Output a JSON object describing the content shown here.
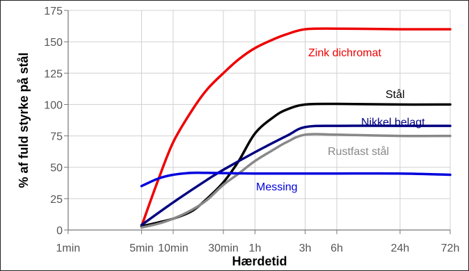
{
  "chart_data": {
    "type": "line",
    "title": "",
    "xlabel": "Hærdetid",
    "ylabel": "% af fuld styrke på stål",
    "x_scale": "log",
    "x_unit": "hours",
    "xlim": [
      0.0167,
      72
    ],
    "ylim": [
      0,
      175
    ],
    "x_ticks": [
      {
        "label": "1min",
        "value": 0.01667
      },
      {
        "label": "5min",
        "value": 0.08333
      },
      {
        "label": "10min",
        "value": 0.16667
      },
      {
        "label": "30min",
        "value": 0.5
      },
      {
        "label": "1h",
        "value": 1
      },
      {
        "label": "3h",
        "value": 3
      },
      {
        "label": "6h",
        "value": 6
      },
      {
        "label": "24h",
        "value": 24
      },
      {
        "label": "72h",
        "value": 72
      }
    ],
    "y_ticks": [
      0,
      25,
      50,
      75,
      100,
      125,
      150,
      175
    ],
    "grid": true,
    "series": [
      {
        "name": "Zink dichromat",
        "color": "#ee0000",
        "points": [
          [
            0.0833,
            3
          ],
          [
            0.12,
            40
          ],
          [
            0.1667,
            70
          ],
          [
            0.25,
            95
          ],
          [
            0.35,
            112
          ],
          [
            0.5,
            125
          ],
          [
            0.7,
            136
          ],
          [
            1,
            145
          ],
          [
            1.5,
            152
          ],
          [
            2,
            156
          ],
          [
            3,
            160
          ],
          [
            6,
            160.5
          ],
          [
            24,
            160
          ],
          [
            72,
            160
          ]
        ]
      },
      {
        "name": "Stål",
        "color": "#000000",
        "points": [
          [
            0.0833,
            3
          ],
          [
            0.12,
            6
          ],
          [
            0.1667,
            9
          ],
          [
            0.25,
            15
          ],
          [
            0.35,
            25
          ],
          [
            0.5,
            38
          ],
          [
            0.7,
            55
          ],
          [
            1,
            77
          ],
          [
            1.5,
            90
          ],
          [
            2,
            96
          ],
          [
            3,
            100
          ],
          [
            6,
            100.5
          ],
          [
            24,
            100
          ],
          [
            72,
            100
          ]
        ]
      },
      {
        "name": "Nikkel belagt",
        "color": "#000080",
        "points": [
          [
            0.0833,
            4
          ],
          [
            0.1667,
            22
          ],
          [
            0.35,
            40
          ],
          [
            0.5,
            48
          ],
          [
            1,
            62
          ],
          [
            2,
            75
          ],
          [
            3,
            82
          ],
          [
            6,
            83
          ],
          [
            24,
            83
          ],
          [
            72,
            83
          ]
        ]
      },
      {
        "name": "Rustfast stål",
        "color": "#888888",
        "points": [
          [
            0.0833,
            2
          ],
          [
            0.12,
            5
          ],
          [
            0.1667,
            9
          ],
          [
            0.25,
            16
          ],
          [
            0.35,
            24
          ],
          [
            0.5,
            36
          ],
          [
            0.7,
            45
          ],
          [
            1,
            55
          ],
          [
            1.5,
            64
          ],
          [
            2,
            70
          ],
          [
            3,
            76
          ],
          [
            6,
            76
          ],
          [
            24,
            75
          ],
          [
            72,
            75
          ]
        ]
      },
      {
        "name": "Messing",
        "color": "#0000dd",
        "points": [
          [
            0.0833,
            35
          ],
          [
            0.12,
            41
          ],
          [
            0.1667,
            44
          ],
          [
            0.25,
            45.5
          ],
          [
            0.35,
            45.5
          ],
          [
            1,
            45
          ],
          [
            6,
            45
          ],
          [
            24,
            45
          ],
          [
            72,
            44
          ]
        ]
      }
    ]
  }
}
